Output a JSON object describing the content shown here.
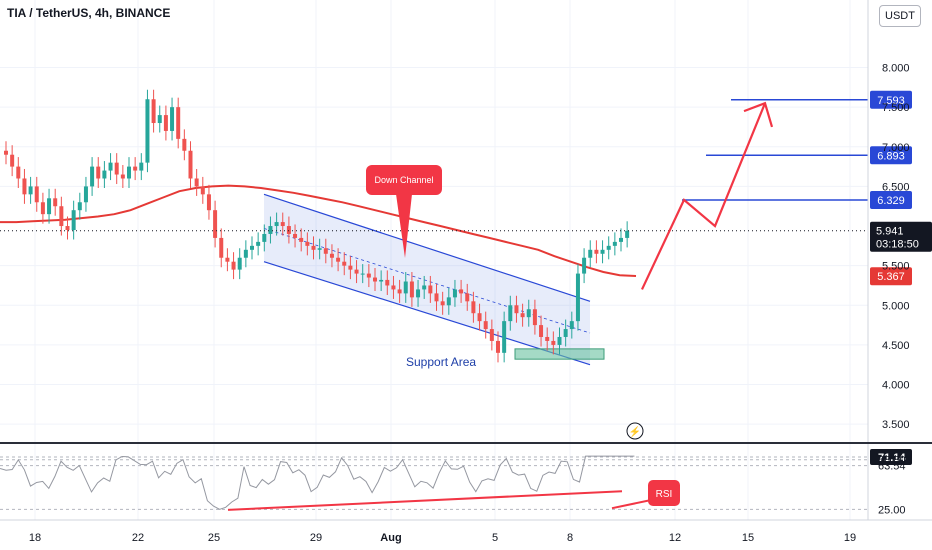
{
  "header": {
    "title": "TIA / TetherUS, 4h, BINANCE",
    "currency_button": "USDT"
  },
  "colors": {
    "bull": "#26a69a",
    "bear": "#ef5350",
    "ma": "#e53935",
    "channel": "#2948d6",
    "target": "#2948d6",
    "arrow": "#f23645",
    "rsi": "#9598a1",
    "support": "#69c2a0"
  },
  "chart_data": {
    "type": "candlestick",
    "price_axis": {
      "ticks": [
        "3.500",
        "4.000",
        "4.500",
        "5.000",
        "5.500",
        "6.500",
        "7.000",
        "7.500",
        "8.000"
      ],
      "range": [
        3.3,
        8.6
      ]
    },
    "time_axis": {
      "ticks": [
        "18",
        "22",
        "25",
        "29",
        "Aug",
        "5",
        "8",
        "12",
        "15",
        "19"
      ]
    },
    "price_labels": [
      {
        "value": "7.593",
        "price": 7.593,
        "kind": "target"
      },
      {
        "value": "6.893",
        "price": 6.893,
        "kind": "target"
      },
      {
        "value": "6.329",
        "price": 6.329,
        "kind": "target"
      },
      {
        "value": "5.941",
        "price": 5.941,
        "kind": "last",
        "countdown": "03:18:50"
      },
      {
        "value": "5.367",
        "price": 5.367,
        "kind": "ma"
      }
    ],
    "annotations": {
      "down_channel": "Down Channel",
      "support_area": "Support Area",
      "rsi_tag": "RSI"
    },
    "ohlc_close": [
      6.9,
      6.75,
      6.6,
      6.4,
      6.5,
      6.3,
      6.15,
      6.35,
      6.25,
      6.0,
      5.95,
      6.2,
      6.3,
      6.5,
      6.75,
      6.6,
      6.7,
      6.8,
      6.65,
      6.6,
      6.75,
      6.7,
      6.8,
      7.6,
      7.3,
      7.4,
      7.2,
      7.5,
      7.1,
      6.95,
      6.6,
      6.5,
      6.4,
      6.2,
      5.85,
      5.6,
      5.55,
      5.45,
      5.6,
      5.7,
      5.75,
      5.8,
      5.9,
      6.0,
      6.05,
      6.0,
      5.9,
      5.85,
      5.8,
      5.75,
      5.7,
      5.72,
      5.65,
      5.6,
      5.55,
      5.5,
      5.45,
      5.4,
      5.4,
      5.35,
      5.3,
      5.32,
      5.25,
      5.2,
      5.15,
      5.3,
      5.1,
      5.2,
      5.25,
      5.15,
      5.05,
      5.0,
      5.1,
      5.2,
      5.15,
      5.05,
      4.9,
      4.8,
      4.7,
      4.55,
      4.4,
      4.8,
      5.0,
      4.9,
      4.85,
      4.95,
      4.75,
      4.6,
      4.55,
      4.5,
      4.6,
      4.7,
      4.8,
      5.4,
      5.6,
      5.7,
      5.65,
      5.7,
      5.75,
      5.8,
      5.85,
      5.94
    ],
    "ma_values": [
      6.05,
      6.05,
      6.06,
      6.07,
      6.08,
      6.1,
      6.12,
      6.15,
      6.2,
      6.28,
      6.36,
      6.44,
      6.48,
      6.5,
      6.51,
      6.5,
      6.48,
      6.45,
      6.42,
      6.38,
      6.34,
      6.3,
      6.25,
      6.2,
      6.15,
      6.1,
      6.05,
      6.0,
      5.95,
      5.9,
      5.85,
      5.8,
      5.75,
      5.7,
      5.62,
      5.55,
      5.48,
      5.42,
      5.38,
      5.37
    ],
    "rsi": {
      "levels": [
        "71.14",
        "68.80",
        "63.54",
        "25.00"
      ],
      "current": "71.14"
    }
  }
}
